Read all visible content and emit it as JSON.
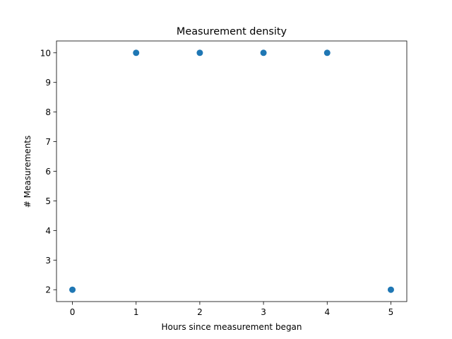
{
  "chart_data": {
    "type": "scatter",
    "title": "Measurement density",
    "xlabel": "Hours since measurement began",
    "ylabel": "# Measurements",
    "x": [
      0,
      1,
      2,
      3,
      4,
      5
    ],
    "y": [
      2,
      10,
      10,
      10,
      10,
      2
    ],
    "xlim": [
      -0.25,
      5.25
    ],
    "ylim": [
      1.6,
      10.4
    ],
    "xticks": [
      0,
      1,
      2,
      3,
      4,
      5
    ],
    "yticks": [
      2,
      3,
      4,
      5,
      6,
      7,
      8,
      9,
      10
    ],
    "grid": false,
    "marker_color": "#1f77b4"
  }
}
